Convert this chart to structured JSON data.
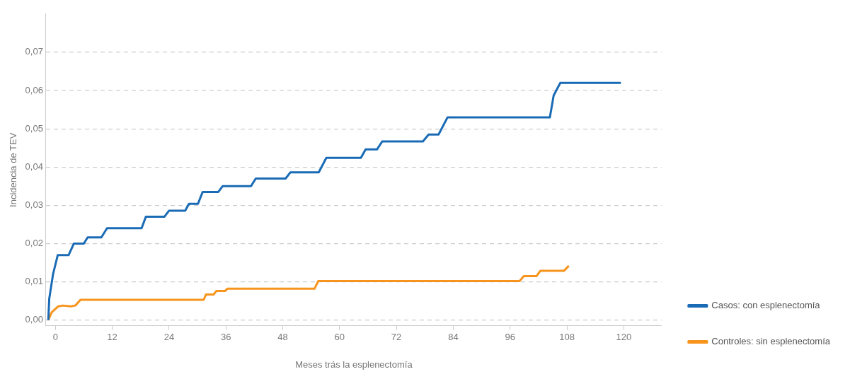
{
  "chart_data": {
    "type": "line",
    "xlabel": "Meses trás la esplenectomía",
    "ylabel": "Incidencia de TEV",
    "xlim": [
      -2,
      128
    ],
    "xticks": [
      0,
      12,
      24,
      36,
      48,
      60,
      72,
      84,
      96,
      108,
      120
    ],
    "ylim": [
      -0.0015,
      0.08
    ],
    "yticks": [
      {
        "value": 0,
        "label": "0,00"
      },
      {
        "value": 0.01,
        "label": "0,01"
      },
      {
        "value": 0.02,
        "label": "0,02"
      },
      {
        "value": 0.03,
        "label": "0,03"
      },
      {
        "value": 0.04,
        "label": "0,04"
      },
      {
        "value": 0.05,
        "label": "0,05"
      },
      {
        "value": 0.06,
        "label": "0,06"
      },
      {
        "value": 0.07,
        "label": "0,07"
      }
    ],
    "grid": "y",
    "legend": "bottom right",
    "marker": "none",
    "line_style": "solid",
    "series": [
      {
        "name": "Casos: con esplenectomía",
        "color": "#1a6bb5",
        "x": [
          -1.5,
          -1.3,
          -0.5,
          0.5,
          2.8,
          3.9,
          6,
          6.8,
          9.7,
          10.9,
          18.2,
          19.1,
          23,
          24,
          27.4,
          28.2,
          30.1,
          31.1,
          34.4,
          35.3,
          41.3,
          42.3,
          48.6,
          49.6,
          55.6,
          57.2,
          64.5,
          65.5,
          67.9,
          69,
          77.6,
          78.8,
          80.9,
          82.8,
          104.4,
          105.2,
          106.6,
          119.4
        ],
        "values": [
          0,
          0.0056,
          0.012,
          0.017,
          0.017,
          0.02,
          0.02,
          0.0216,
          0.0216,
          0.024,
          0.024,
          0.027,
          0.027,
          0.0286,
          0.0286,
          0.0304,
          0.0304,
          0.0335,
          0.0335,
          0.035,
          0.035,
          0.037,
          0.037,
          0.0386,
          0.0386,
          0.0424,
          0.0424,
          0.0446,
          0.0446,
          0.0467,
          0.0467,
          0.0485,
          0.0485,
          0.053,
          0.053,
          0.0587,
          0.062,
          0.062
        ]
      },
      {
        "name": "Controles: sin esplenectomía",
        "color": "#f7941d",
        "x": [
          -1.5,
          -0.8,
          0.6,
          1.6,
          3.2,
          4.2,
          5.3,
          31.3,
          31.8,
          33.4,
          34,
          35.8,
          36.3,
          54.7,
          55.5,
          98,
          98.9,
          101.6,
          102.4,
          107.4,
          108.4
        ],
        "values": [
          0,
          0.002,
          0.0036,
          0.0038,
          0.0036,
          0.0038,
          0.0053,
          0.0053,
          0.0067,
          0.0067,
          0.0076,
          0.0076,
          0.0082,
          0.0082,
          0.0102,
          0.0102,
          0.0115,
          0.0115,
          0.0129,
          0.0129,
          0.0142
        ]
      }
    ]
  }
}
